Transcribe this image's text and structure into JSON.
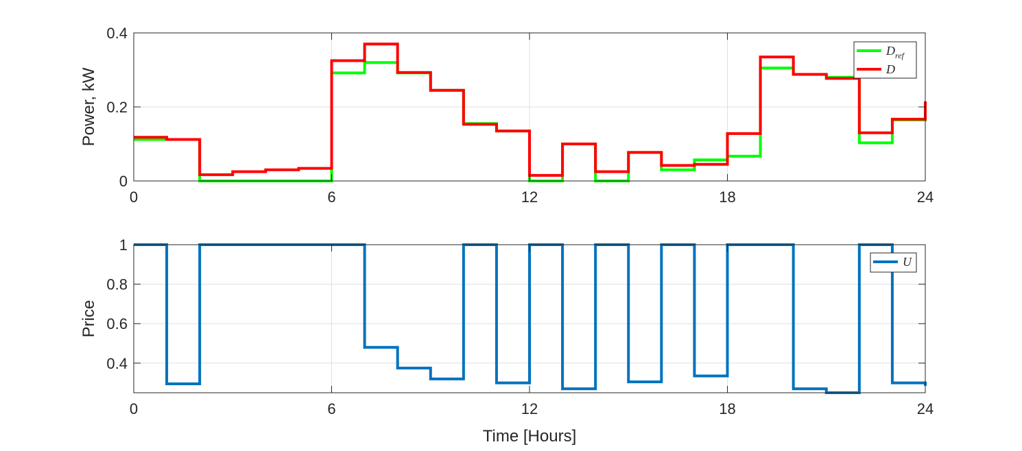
{
  "chart_data": [
    {
      "type": "line",
      "step": "post",
      "ylabel": "Power, kW",
      "xlabel": "",
      "xlim": [
        0,
        24
      ],
      "ylim": [
        0,
        0.4
      ],
      "xticks": [
        "0",
        "6",
        "12",
        "18",
        "24"
      ],
      "yticks": [
        "0",
        "0.2",
        "0.4"
      ],
      "grid": true,
      "legend": "top-right",
      "x": [
        0,
        1,
        2,
        3,
        4,
        5,
        6,
        7,
        8,
        9,
        10,
        11,
        12,
        13,
        14,
        15,
        16,
        17,
        18,
        19,
        20,
        21,
        22,
        23,
        24
      ],
      "series": [
        {
          "name": "D_ref",
          "legend_main": "D",
          "legend_sub": "ref",
          "color": "#00ff00",
          "values": [
            0.112,
            0.112,
            0.0,
            0.0,
            0.0,
            0.0,
            0.292,
            0.32,
            0.292,
            0.245,
            0.155,
            0.135,
            0.0,
            0.1,
            0.0,
            0.077,
            0.03,
            0.057,
            0.067,
            0.305,
            0.288,
            0.28,
            0.103,
            0.165,
            0.21
          ]
        },
        {
          "name": "D",
          "legend_main": "D",
          "legend_sub": "",
          "color": "#ff0000",
          "values": [
            0.118,
            0.112,
            0.017,
            0.025,
            0.03,
            0.034,
            0.325,
            0.37,
            0.293,
            0.245,
            0.153,
            0.135,
            0.015,
            0.1,
            0.025,
            0.077,
            0.042,
            0.045,
            0.128,
            0.335,
            0.288,
            0.277,
            0.13,
            0.167,
            0.215
          ]
        }
      ]
    },
    {
      "type": "line",
      "step": "post",
      "ylabel": "Price",
      "xlabel": "Time [Hours]",
      "xlim": [
        0,
        24
      ],
      "ylim": [
        0.25,
        1
      ],
      "xticks": [
        "0",
        "6",
        "12",
        "18",
        "24"
      ],
      "yticks": [
        "0.4",
        "0.6",
        "0.8",
        "1"
      ],
      "grid": true,
      "legend": "top-right",
      "x": [
        0,
        1,
        2,
        3,
        4,
        5,
        6,
        7,
        8,
        9,
        10,
        11,
        12,
        13,
        14,
        15,
        16,
        17,
        18,
        19,
        20,
        21,
        22,
        23,
        24
      ],
      "series": [
        {
          "name": "U",
          "legend_main": "U",
          "legend_sub": "",
          "color": "#0072bd",
          "values": [
            1,
            0.295,
            1,
            1,
            1,
            1,
            1,
            0.48,
            0.375,
            0.32,
            1,
            0.3,
            1,
            0.27,
            1,
            0.305,
            1,
            0.335,
            1,
            1,
            0.27,
            0.25,
            1,
            0.3,
            0.285
          ]
        }
      ]
    }
  ]
}
